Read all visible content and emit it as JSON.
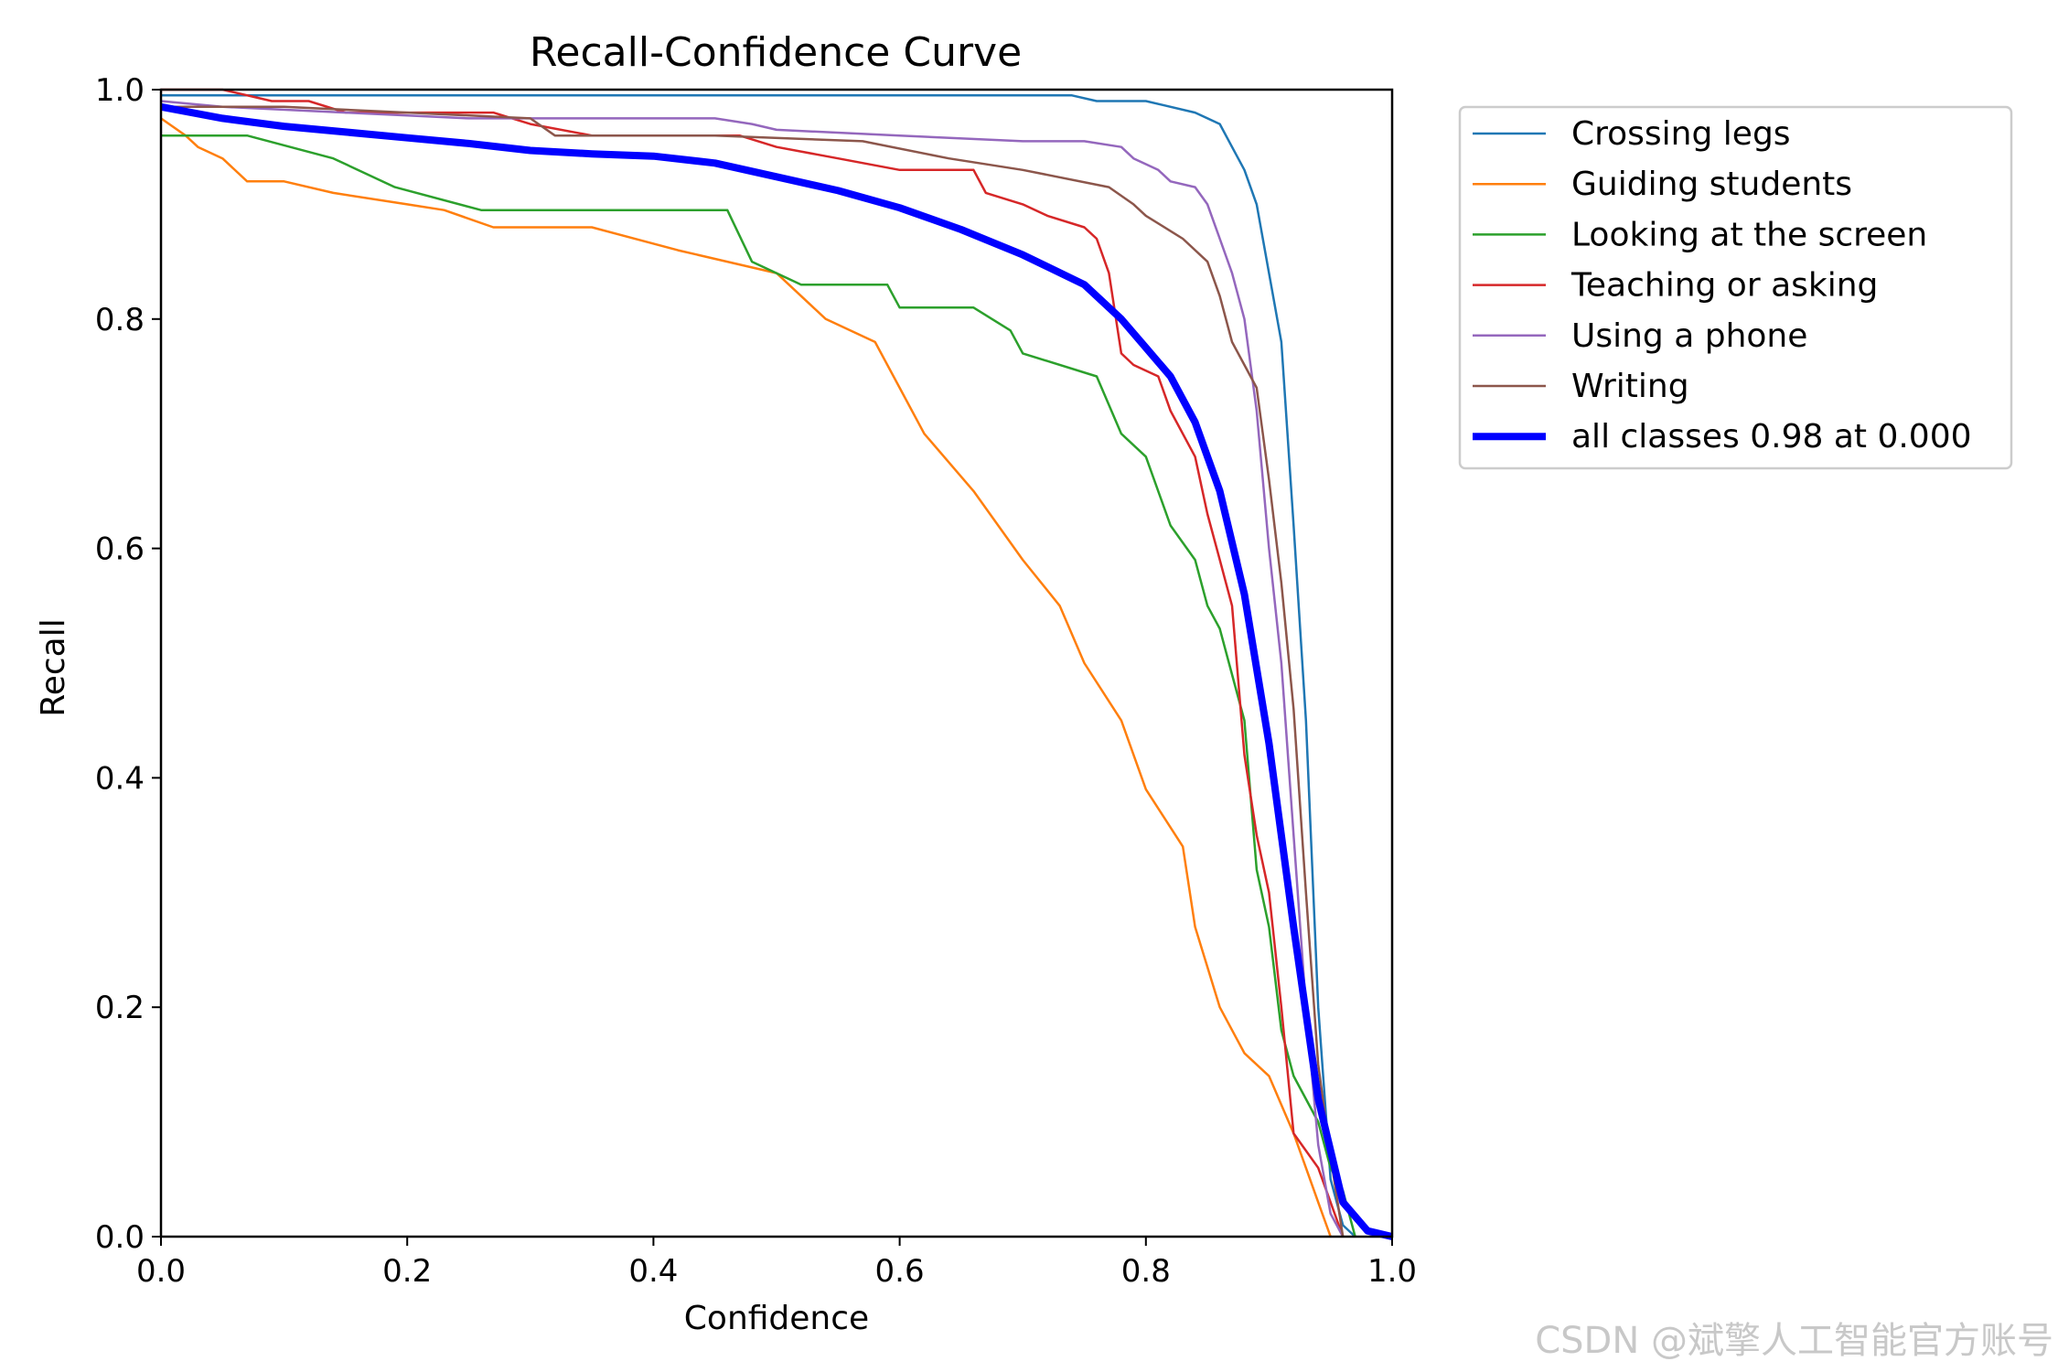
{
  "watermark": "CSDN @斌擎人工智能官方账号",
  "chart_data": {
    "type": "line",
    "title": "Recall-Confidence Curve",
    "xlabel": "Confidence",
    "ylabel": "Recall",
    "xlim": [
      0,
      1
    ],
    "ylim": [
      0,
      1
    ],
    "xticks": [
      "0.0",
      "0.2",
      "0.4",
      "0.6",
      "0.8",
      "1.0"
    ],
    "yticks": [
      "0.0",
      "0.2",
      "0.4",
      "0.6",
      "0.8",
      "1.0"
    ],
    "legend_position": "outside-top-right",
    "series": [
      {
        "name": "Crossing legs",
        "color": "#1f77b4",
        "width": "thin",
        "x": [
          0,
          0.05,
          0.3,
          0.5,
          0.74,
          0.76,
          0.8,
          0.84,
          0.86,
          0.87,
          0.88,
          0.89,
          0.9,
          0.91,
          0.92,
          0.93,
          0.94,
          0.95,
          0.96,
          0.97
        ],
        "y": [
          0.995,
          0.995,
          0.995,
          0.995,
          0.995,
          0.99,
          0.99,
          0.98,
          0.97,
          0.95,
          0.93,
          0.9,
          0.84,
          0.78,
          0.62,
          0.45,
          0.2,
          0.05,
          0.01,
          0
        ]
      },
      {
        "name": "Guiding students",
        "color": "#ff7f0e",
        "width": "thin",
        "x": [
          0,
          0.02,
          0.03,
          0.05,
          0.07,
          0.1,
          0.14,
          0.2,
          0.23,
          0.27,
          0.35,
          0.42,
          0.5,
          0.54,
          0.58,
          0.6,
          0.62,
          0.66,
          0.7,
          0.73,
          0.75,
          0.78,
          0.8,
          0.83,
          0.84,
          0.86,
          0.88,
          0.9,
          0.92,
          0.93,
          0.94,
          0.95
        ],
        "y": [
          0.975,
          0.96,
          0.95,
          0.94,
          0.92,
          0.92,
          0.91,
          0.9,
          0.895,
          0.88,
          0.88,
          0.86,
          0.84,
          0.8,
          0.78,
          0.74,
          0.7,
          0.65,
          0.59,
          0.55,
          0.5,
          0.45,
          0.39,
          0.34,
          0.27,
          0.2,
          0.16,
          0.14,
          0.09,
          0.06,
          0.03,
          0
        ]
      },
      {
        "name": "Looking at the screen",
        "color": "#2ca02c",
        "width": "thin",
        "x": [
          0,
          0.07,
          0.14,
          0.19,
          0.26,
          0.35,
          0.46,
          0.48,
          0.52,
          0.59,
          0.6,
          0.66,
          0.69,
          0.7,
          0.76,
          0.78,
          0.8,
          0.82,
          0.84,
          0.85,
          0.86,
          0.87,
          0.88,
          0.89,
          0.9,
          0.91,
          0.92,
          0.94,
          0.95,
          0.96,
          0.97
        ],
        "y": [
          0.96,
          0.96,
          0.94,
          0.915,
          0.895,
          0.895,
          0.895,
          0.85,
          0.83,
          0.83,
          0.81,
          0.81,
          0.79,
          0.77,
          0.75,
          0.7,
          0.68,
          0.62,
          0.59,
          0.55,
          0.53,
          0.49,
          0.45,
          0.32,
          0.27,
          0.18,
          0.14,
          0.1,
          0.06,
          0.04,
          0
        ]
      },
      {
        "name": "Teaching or asking",
        "color": "#d62728",
        "width": "thin",
        "x": [
          0,
          0.05,
          0.09,
          0.12,
          0.15,
          0.27,
          0.3,
          0.35,
          0.47,
          0.5,
          0.55,
          0.6,
          0.66,
          0.67,
          0.7,
          0.72,
          0.75,
          0.76,
          0.77,
          0.78,
          0.79,
          0.81,
          0.82,
          0.84,
          0.85,
          0.86,
          0.87,
          0.88,
          0.89,
          0.9,
          0.91,
          0.92,
          0.94,
          0.95,
          0.96
        ],
        "y": [
          1.0,
          1.0,
          0.99,
          0.99,
          0.98,
          0.98,
          0.97,
          0.96,
          0.96,
          0.95,
          0.94,
          0.93,
          0.93,
          0.91,
          0.9,
          0.89,
          0.88,
          0.87,
          0.84,
          0.77,
          0.76,
          0.75,
          0.72,
          0.68,
          0.63,
          0.59,
          0.55,
          0.42,
          0.35,
          0.3,
          0.2,
          0.09,
          0.06,
          0.03,
          0
        ]
      },
      {
        "name": "Using a phone",
        "color": "#9467bd",
        "width": "thin",
        "x": [
          0,
          0.05,
          0.15,
          0.25,
          0.35,
          0.45,
          0.48,
          0.5,
          0.6,
          0.7,
          0.75,
          0.78,
          0.79,
          0.81,
          0.82,
          0.84,
          0.85,
          0.86,
          0.87,
          0.88,
          0.885,
          0.89,
          0.9,
          0.91,
          0.92,
          0.93,
          0.94,
          0.95,
          0.96
        ],
        "y": [
          0.99,
          0.985,
          0.98,
          0.975,
          0.975,
          0.975,
          0.97,
          0.965,
          0.96,
          0.955,
          0.955,
          0.95,
          0.94,
          0.93,
          0.92,
          0.915,
          0.9,
          0.87,
          0.84,
          0.8,
          0.76,
          0.72,
          0.6,
          0.5,
          0.35,
          0.2,
          0.08,
          0.02,
          0
        ]
      },
      {
        "name": "Writing",
        "color": "#8c564b",
        "width": "thin",
        "x": [
          0,
          0.1,
          0.2,
          0.3,
          0.32,
          0.4,
          0.45,
          0.57,
          0.64,
          0.7,
          0.77,
          0.79,
          0.8,
          0.83,
          0.85,
          0.86,
          0.87,
          0.88,
          0.89,
          0.9,
          0.91,
          0.92,
          0.93,
          0.94,
          0.95,
          0.96
        ],
        "y": [
          0.985,
          0.985,
          0.98,
          0.975,
          0.96,
          0.96,
          0.96,
          0.955,
          0.94,
          0.93,
          0.915,
          0.9,
          0.89,
          0.87,
          0.85,
          0.82,
          0.78,
          0.76,
          0.74,
          0.66,
          0.57,
          0.46,
          0.3,
          0.15,
          0.07,
          0
        ]
      },
      {
        "name": "all classes 0.98 at 0.000",
        "color": "#0000ff",
        "width": "thick",
        "x": [
          0,
          0.05,
          0.1,
          0.15,
          0.2,
          0.25,
          0.3,
          0.35,
          0.4,
          0.45,
          0.5,
          0.55,
          0.6,
          0.65,
          0.7,
          0.75,
          0.78,
          0.8,
          0.82,
          0.84,
          0.86,
          0.88,
          0.9,
          0.92,
          0.94,
          0.96,
          0.98,
          1.0
        ],
        "y": [
          0.985,
          0.975,
          0.968,
          0.963,
          0.958,
          0.953,
          0.947,
          0.944,
          0.942,
          0.936,
          0.924,
          0.912,
          0.897,
          0.878,
          0.856,
          0.83,
          0.8,
          0.775,
          0.75,
          0.71,
          0.65,
          0.56,
          0.43,
          0.27,
          0.12,
          0.03,
          0.005,
          0
        ]
      }
    ]
  }
}
